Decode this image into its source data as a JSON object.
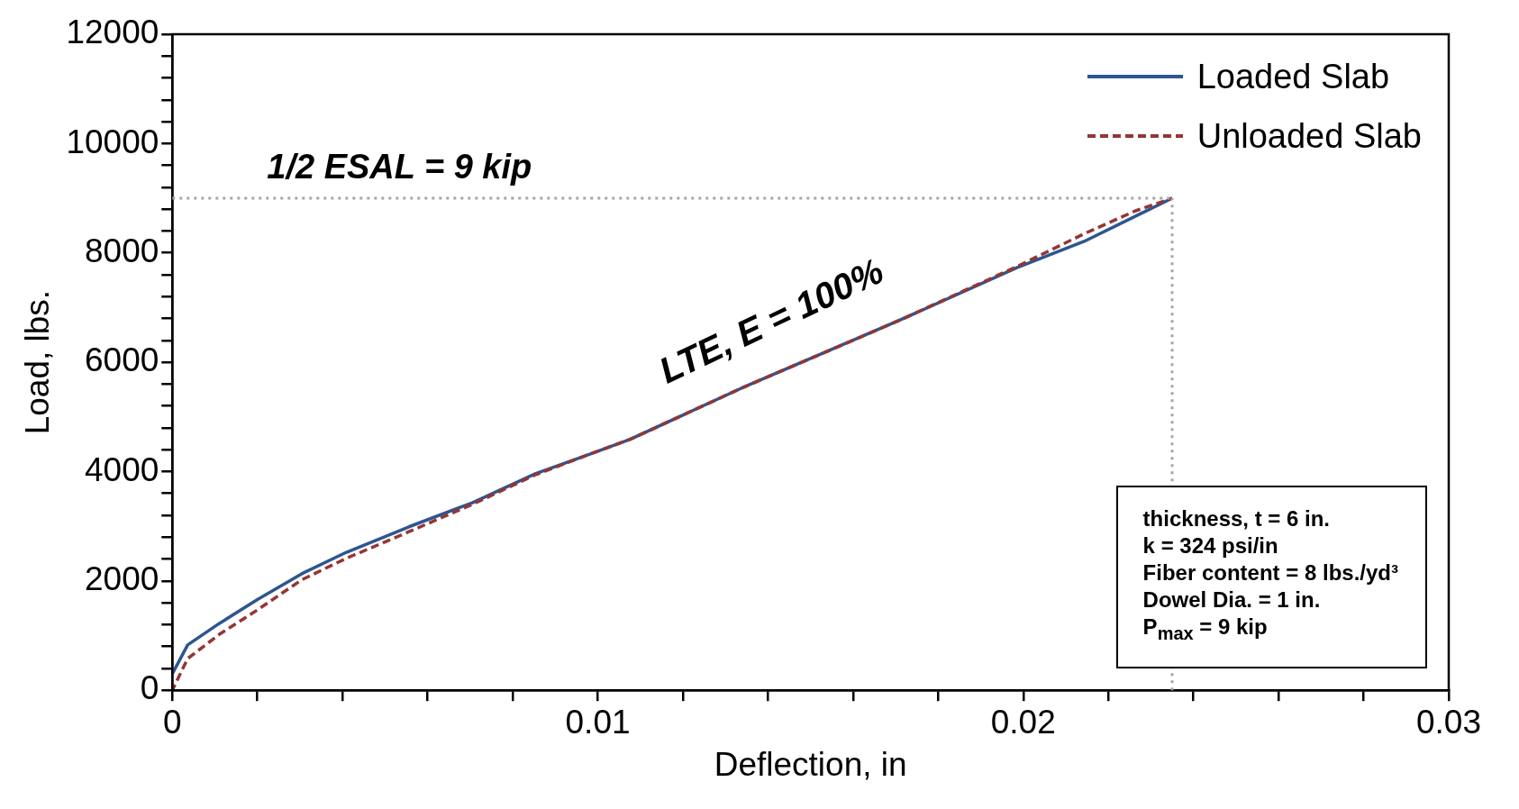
{
  "chart_data": {
    "type": "line",
    "xlabel": "Deflection, in",
    "ylabel": "Load, lbs.",
    "xlim": [
      0,
      0.03
    ],
    "ylim": [
      0,
      12000
    ],
    "xticks": [
      0,
      {
        "value": 0.002,
        "label": null
      },
      {
        "value": 0.004,
        "label": null
      },
      {
        "value": 0.006,
        "label": null
      },
      {
        "value": 0.008,
        "label": null
      },
      0.01,
      {
        "value": 0.012,
        "label": null
      },
      {
        "value": 0.014,
        "label": null
      },
      {
        "value": 0.016,
        "label": null
      },
      {
        "value": 0.018,
        "label": null
      },
      0.02,
      {
        "value": 0.022,
        "label": null
      },
      {
        "value": 0.024,
        "label": null
      },
      {
        "value": 0.026,
        "label": null
      },
      {
        "value": 0.028,
        "label": null
      },
      0.03
    ],
    "yticks": [
      0,
      {
        "value": 400,
        "label": null
      },
      {
        "value": 800,
        "label": null
      },
      {
        "value": 1200,
        "label": null
      },
      {
        "value": 1600,
        "label": null
      },
      2000,
      {
        "value": 2400,
        "label": null
      },
      {
        "value": 2800,
        "label": null
      },
      {
        "value": 3200,
        "label": null
      },
      {
        "value": 3600,
        "label": null
      },
      4000,
      {
        "value": 4400,
        "label": null
      },
      {
        "value": 4800,
        "label": null
      },
      {
        "value": 5200,
        "label": null
      },
      {
        "value": 5600,
        "label": null
      },
      6000,
      {
        "value": 6400,
        "label": null
      },
      {
        "value": 6800,
        "label": null
      },
      {
        "value": 7200,
        "label": null
      },
      {
        "value": 7600,
        "label": null
      },
      8000,
      {
        "value": 8400,
        "label": null
      },
      {
        "value": 8800,
        "label": null
      },
      {
        "value": 9200,
        "label": null
      },
      {
        "value": 9600,
        "label": null
      },
      10000,
      {
        "value": 10400,
        "label": null
      },
      {
        "value": 10800,
        "label": null
      },
      {
        "value": 11200,
        "label": null
      },
      {
        "value": 11600,
        "label": null
      },
      12000
    ],
    "grid": false,
    "legend": "top right",
    "marker": "none",
    "series": [
      {
        "name": "Loaded Slab",
        "color": "#2e5590",
        "line_style": "solid",
        "x": [
          0,
          0.00036,
          0.0011,
          0.002,
          0.00304,
          0.00408,
          0.00556,
          0.00705,
          0.00853,
          0.00964,
          0.01076,
          0.01336,
          0.01707,
          0.01985,
          0.02143,
          0.0235
        ],
        "values": [
          300,
          830,
          1220,
          1660,
          2130,
          2520,
          2990,
          3430,
          3960,
          4270,
          4590,
          5520,
          6760,
          7730,
          8210,
          9000
        ]
      },
      {
        "name": "Unloaded Slab",
        "color": "#943634",
        "line_style": "dashed",
        "x": [
          0,
          0.00036,
          0.0011,
          0.002,
          0.00304,
          0.00408,
          0.00556,
          0.00705,
          0.00853,
          0.00964,
          0.01076,
          0.01336,
          0.01707,
          0.01985,
          0.02143,
          0.02264,
          0.0235
        ],
        "values": [
          0,
          580,
          1020,
          1470,
          2020,
          2410,
          2900,
          3400,
          3940,
          4270,
          4590,
          5520,
          6760,
          7750,
          8350,
          8770,
          9000
        ]
      }
    ],
    "ref_lines": [
      {
        "axis": "y",
        "value": 9000,
        "color": "#a6a6a6",
        "line_style": "dotted"
      },
      {
        "axis": "x",
        "value": 0.0235,
        "color": "#a6a6a6",
        "line_style": "dotted"
      }
    ],
    "annotations": [
      "1/2 ESAL = 9 kip",
      "LTE, E = 100%",
      "thickness, t = 6 in.",
      "k = 324 psi/in",
      "Fiber content = 8 lbs./yd³",
      "Dowel Dia. = 1 in.",
      "P$_{max}$ = 9 kip"
    ]
  }
}
